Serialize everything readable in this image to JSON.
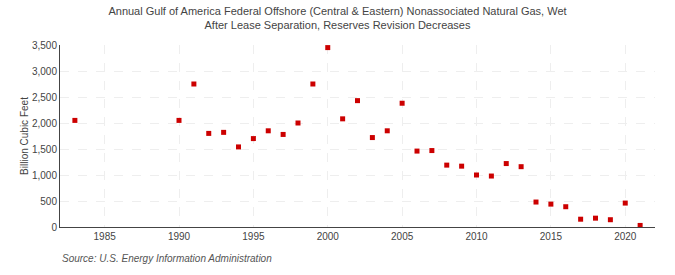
{
  "chart_data": {
    "type": "scatter",
    "title": "Annual Gulf of America Federal Offshore (Central & Eastern) Nonassociated Natural Gas, Wet\nAfter Lease Separation, Reserves Revision Decreases",
    "ylabel": "Billion Cubic Feet",
    "annotations": [
      "Source: U.S. Energy Information Administration"
    ],
    "x": [
      1983,
      1990,
      1991,
      1992,
      1993,
      1994,
      1995,
      1996,
      1997,
      1998,
      1999,
      2000,
      2001,
      2002,
      2003,
      2004,
      2005,
      2006,
      2007,
      2008,
      2009,
      2010,
      2011,
      2012,
      2013,
      2014,
      2015,
      2016,
      2017,
      2018,
      2019,
      2020,
      2021
    ],
    "values": [
      2050,
      2050,
      2750,
      1800,
      1820,
      1540,
      1700,
      1850,
      1780,
      2000,
      2750,
      3450,
      2080,
      2430,
      1720,
      1850,
      2380,
      1460,
      1470,
      1190,
      1170,
      1000,
      980,
      1220,
      1160,
      480,
      440,
      390,
      150,
      170,
      140,
      460,
      30
    ],
    "color": "#cc0000",
    "marker": "square",
    "xlim": [
      1982,
      2022
    ],
    "xticks": [
      1985,
      1990,
      1995,
      2000,
      2005,
      2010,
      2015,
      2020
    ],
    "ylim": [
      0,
      3500
    ],
    "yticks": [
      0,
      500,
      {
        "value": 1000,
        "label": "1,000"
      },
      {
        "value": 1500,
        "label": "1,500"
      },
      {
        "value": 2000,
        "label": "2,000"
      },
      {
        "value": 2500,
        "label": "2,500"
      },
      {
        "value": 3000,
        "label": "3,000"
      },
      {
        "value": 3500,
        "label": "3,500"
      }
    ],
    "grid": true
  }
}
